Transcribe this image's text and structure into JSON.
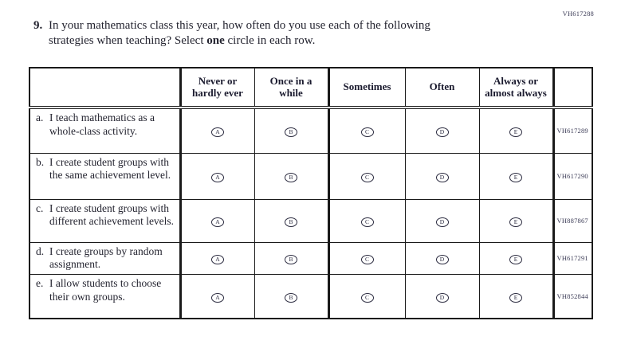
{
  "question": {
    "number": "9.",
    "line1": "In your mathematics class this year, how often do you use each of the following",
    "line2_before_bold": "strategies when teaching? Select ",
    "line2_bold": "one",
    "line2_after_bold": " circle in each row.",
    "code": "VH617288"
  },
  "table": {
    "columns": [
      "Never or hardly ever",
      "Once in a while",
      "Sometimes",
      "Often",
      "Always or almost always"
    ],
    "option_letters": [
      "A",
      "B",
      "C",
      "D",
      "E"
    ],
    "rows": [
      {
        "letter": "a.",
        "text": "I teach mathematics as a whole-class activity.",
        "code": "VH617289"
      },
      {
        "letter": "b.",
        "text": "I create student groups with the same achievement level.",
        "code": "VH617290"
      },
      {
        "letter": "c.",
        "text": "I create student groups with different achievement levels.",
        "code": "VH887867"
      },
      {
        "letter": "d.",
        "text": "I create groups by random assignment.",
        "code": "VH617291"
      },
      {
        "letter": "e.",
        "text": "I allow students to choose their own groups.",
        "code": "VH852844"
      }
    ]
  },
  "colors": {
    "text": "#1e1e1e",
    "border": "#1a1a1a",
    "code_text": "#3a3a55"
  }
}
